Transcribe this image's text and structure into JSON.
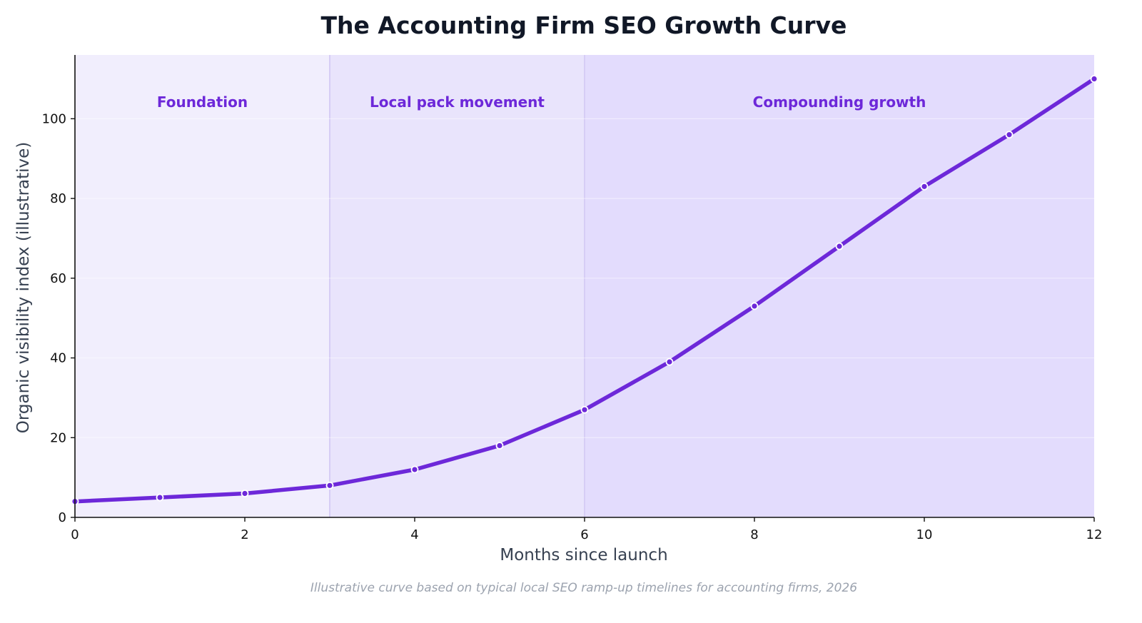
{
  "chart_data": {
    "type": "line",
    "title": "The Accounting Firm SEO Growth Curve",
    "xlabel": "Months since launch",
    "ylabel": "Organic visibility index (illustrative)",
    "footnote": "Illustrative curve based on typical local SEO ramp-up timelines for accounting firms, 2026",
    "xlim": [
      0,
      12
    ],
    "ylim": [
      0,
      116
    ],
    "xticks": [
      0,
      2,
      4,
      6,
      8,
      10,
      12
    ],
    "yticks": [
      0,
      20,
      40,
      60,
      80,
      100
    ],
    "grid": true,
    "series": [
      {
        "x": [
          0,
          1,
          2,
          3,
          4,
          5,
          6,
          7,
          8,
          9,
          10,
          11,
          12
        ],
        "values": [
          4,
          5,
          6,
          8,
          12,
          18,
          27,
          39,
          53,
          68,
          83,
          96,
          110
        ],
        "color": "#6d28d9"
      }
    ],
    "phases": [
      {
        "label": "Foundation",
        "start": 0,
        "end": 3,
        "color": "#f1eefd"
      },
      {
        "label": "Local pack movement",
        "start": 3,
        "end": 6,
        "color": "#e9e4fc"
      },
      {
        "label": "Compounding growth",
        "start": 6,
        "end": 12,
        "color": "#e3dcfd"
      }
    ]
  }
}
